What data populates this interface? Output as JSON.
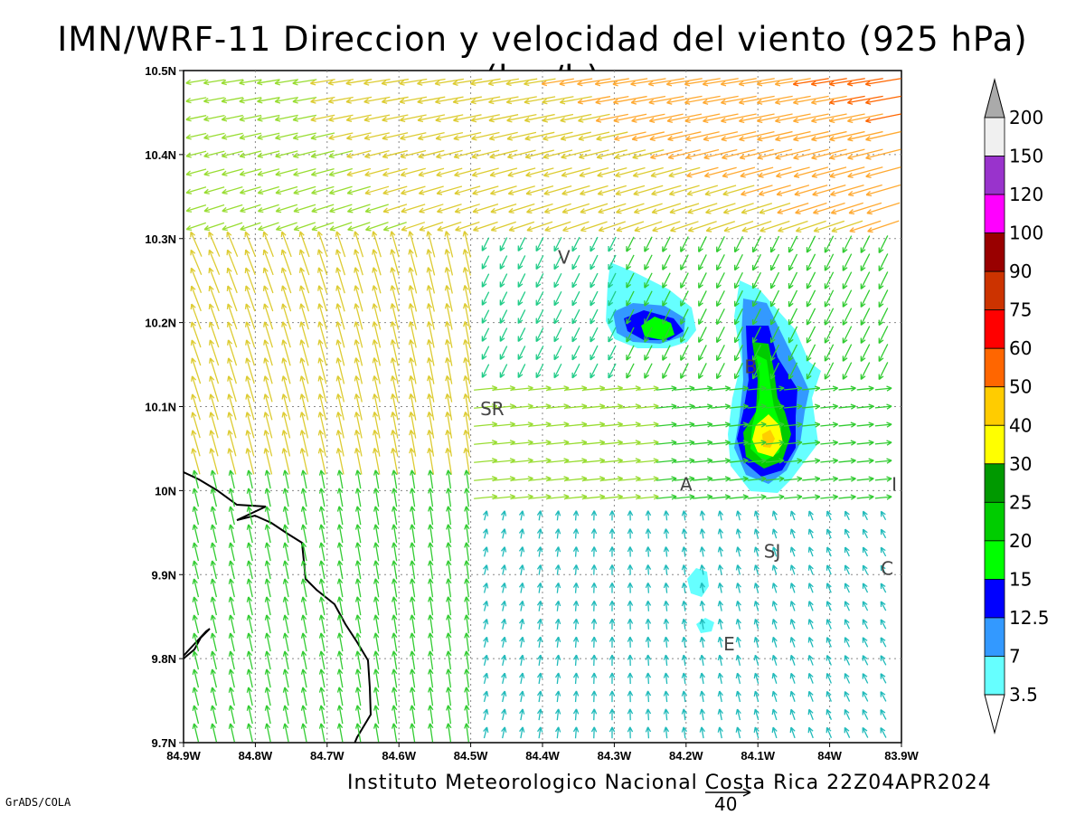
{
  "title": "IMN/WRF-11 Direccion y velocidad del viento (925 hPa)(km/h)",
  "footer": {
    "institution": "Instituto Meteorologico Nacional Costa Rica 22Z04APR2024",
    "software": "GrADS/COLA",
    "reference_vector_label": "40"
  },
  "axes": {
    "lon_ticks": [
      "84.9W",
      "84.8W",
      "84.7W",
      "84.6W",
      "84.5W",
      "84.4W",
      "84.3W",
      "84.2W",
      "84.1W",
      "84W",
      "83.9W"
    ],
    "lat_ticks": [
      "10.5N",
      "10.4N",
      "10.3N",
      "10.2N",
      "10.1N",
      "10N",
      "9.9N",
      "9.8N",
      "9.7N"
    ],
    "lon_range": [
      -84.9,
      -83.9
    ],
    "lat_range": [
      9.7,
      10.5
    ],
    "grid": true
  },
  "towns": [
    {
      "name": "V",
      "lon": -84.37,
      "lat": 10.27
    },
    {
      "name": "SR",
      "lon": -84.47,
      "lat": 10.09
    },
    {
      "name": "A",
      "lon": -84.2,
      "lat": 10.0
    },
    {
      "name": "B",
      "lon": -84.11,
      "lat": 10.14
    },
    {
      "name": "SJ",
      "lon": -84.08,
      "lat": 9.92
    },
    {
      "name": "C",
      "lon": -83.92,
      "lat": 9.9
    },
    {
      "name": "E",
      "lon": -84.14,
      "lat": 9.81
    },
    {
      "name": "I",
      "lon": -83.91,
      "lat": 10.0
    }
  ],
  "colorbar": {
    "labels": [
      "200",
      "150",
      "120",
      "100",
      "90",
      "75",
      "60",
      "50",
      "40",
      "30",
      "25",
      "20",
      "15",
      "12.5",
      "7",
      "3.5"
    ],
    "colors": [
      "#f0f0f0",
      "#9933cc",
      "#ff00ff",
      "#990000",
      "#cc3300",
      "#ff0000",
      "#ff6600",
      "#ffcc00",
      "#ffff00",
      "#009900",
      "#00cc00",
      "#00ff00",
      "#0000ff",
      "#3399ff",
      "#66ffff"
    ],
    "over_color": "#aaaaaa",
    "under_color": "#ffffff"
  }
}
